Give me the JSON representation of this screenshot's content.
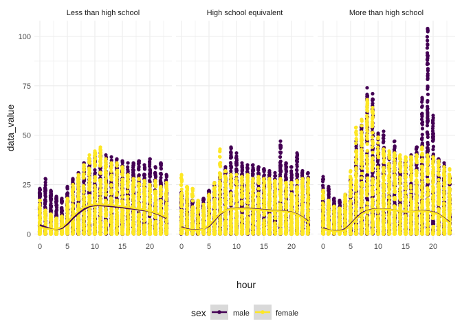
{
  "chart_data": {
    "type": "scatter",
    "xlabel": "hour",
    "ylabel": "data_value",
    "xlim": [
      -1,
      24
    ],
    "ylim": [
      -3,
      108
    ],
    "x_ticks": [
      0,
      5,
      10,
      15,
      20
    ],
    "y_ticks": [
      0,
      25,
      50,
      75,
      100
    ],
    "grid": true,
    "legend": {
      "position": "bottom",
      "title": "sex",
      "entries": [
        {
          "label": "male",
          "color": "#440154"
        },
        {
          "label": "female",
          "color": "#FDE725"
        }
      ]
    },
    "facets": [
      {
        "title": "Less than high school",
        "series": [
          {
            "name": "male",
            "color": "#440154",
            "max": [
              23,
              28,
              22,
              19,
              18,
              24,
              28,
              31,
              36,
              38,
              41,
              41,
              40,
              39,
              38,
              37,
              36,
              36,
              37,
              35,
              38,
              34,
              36,
              30
            ],
            "smooth": [
              4.5,
              3.5,
              2.5,
              2.3,
              3.0,
              5.0,
              8.0,
              10.5,
              12.5,
              14.0,
              14.5,
              14.5,
              14.3,
              14.0,
              13.8,
              13.5,
              13.0,
              12.8,
              12.3,
              12.0,
              11.5,
              10.5,
              9.5,
              8.0
            ]
          },
          {
            "name": "female",
            "color": "#FDE725",
            "max": [
              17,
              12,
              10,
              8,
              9,
              18,
              25,
              30,
              35,
              40,
              42,
              44,
              38,
              36,
              36,
              34,
              30,
              28,
              28,
              27,
              25,
              27,
              24,
              26
            ],
            "smooth": [
              3.5,
              2.8,
              2.3,
              2.5,
              3.5,
              6.0,
              9.0,
              11.5,
              13.5,
              14.5,
              15.0,
              15.0,
              14.8,
              14.6,
              14.3,
              14.0,
              13.6,
              13.2,
              12.8,
              12.3,
              11.6,
              10.8,
              9.8,
              8.5
            ]
          }
        ]
      },
      {
        "title": "High school equivalent",
        "series": [
          {
            "name": "male",
            "color": "#440154",
            "max": [
              21,
              18,
              17,
              16,
              18,
              22,
              26,
              29,
              34,
              44,
              41,
              36,
              35,
              35,
              34,
              33,
              32,
              31,
              47,
              36,
              34,
              41,
              32,
              31
            ],
            "smooth": [
              3.5,
              2.5,
              2.0,
              2.0,
              2.5,
              4.0,
              7.0,
              10.0,
              12.0,
              12.8,
              13.0,
              13.0,
              12.9,
              12.7,
              12.5,
              12.2,
              12.0,
              11.8,
              11.6,
              11.4,
              11.0,
              10.0,
              8.5,
              6.5
            ]
          },
          {
            "name": "female",
            "color": "#FDE725",
            "max": [
              30,
              24,
              23,
              17,
              15,
              20,
              26,
              43,
              32,
              30,
              30,
              29,
              30,
              28,
              29,
              28,
              28,
              27,
              28,
              26,
              26,
              27,
              28,
              28
            ],
            "smooth": [
              3.0,
              2.2,
              1.8,
              1.8,
              2.5,
              4.5,
              7.5,
              10.5,
              12.0,
              12.6,
              12.8,
              12.8,
              12.6,
              12.4,
              12.2,
              12.0,
              11.8,
              11.6,
              11.4,
              11.2,
              10.8,
              9.8,
              8.2,
              6.0
            ]
          }
        ]
      },
      {
        "title": "More than high school",
        "series": [
          {
            "name": "male",
            "color": "#440154",
            "max": [
              29,
              24,
              18,
              17,
              20,
              28,
              47,
              55,
              74,
              71,
              51,
              52,
              40,
              47,
              38,
              37,
              40,
              44,
              69,
              104,
              60,
              38,
              36,
              29
            ],
            "smooth": [
              3.0,
              2.0,
              1.5,
              1.5,
              2.5,
              5.0,
              8.0,
              10.5,
              11.8,
              12.4,
              12.6,
              12.6,
              12.4,
              12.0,
              11.6,
              11.2,
              11.2,
              11.6,
              11.8,
              11.5,
              11.0,
              10.0,
              8.0,
              6.0
            ]
          },
          {
            "name": "female",
            "color": "#FDE725",
            "max": [
              22,
              17,
              14,
              13,
              20,
              32,
              54,
              58,
              68,
              64,
              49,
              43,
              42,
              41,
              40,
              39,
              39,
              40,
              44,
              40,
              39,
              37,
              34,
              33
            ],
            "smooth": [
              2.5,
              1.8,
              1.3,
              1.3,
              2.0,
              4.5,
              7.5,
              10.0,
              11.5,
              12.2,
              12.5,
              12.5,
              12.3,
              12.0,
              11.6,
              11.3,
              11.2,
              11.4,
              11.6,
              11.3,
              10.8,
              9.8,
              7.8,
              5.5
            ]
          }
        ]
      }
    ]
  }
}
